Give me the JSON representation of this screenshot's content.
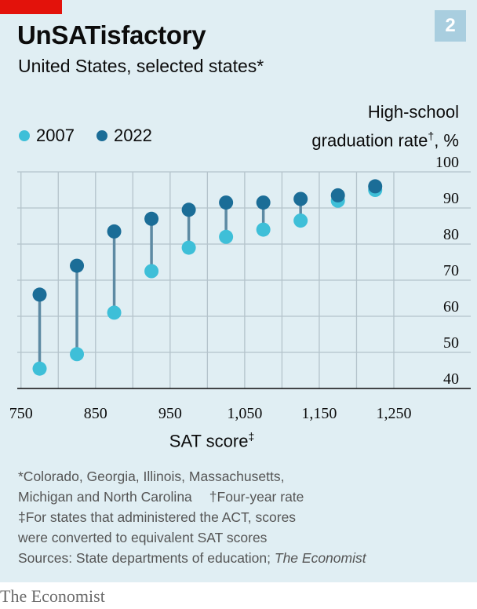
{
  "header": {
    "title": "UnSATisfactory",
    "subtitle": "United States, selected states*",
    "chart_number": "2"
  },
  "colors": {
    "accent_red": "#e3120b",
    "series_2007": "#3ebfd8",
    "series_2022": "#1b6d97",
    "connector": "#5d8aa3",
    "background": "#e0eef3",
    "gridline": "#b4c3cb"
  },
  "legend": {
    "label_2007": "2007",
    "label_2022": "2022"
  },
  "axes": {
    "y_title_line1": "High-school",
    "y_title_line2": "graduation rate",
    "y_title_mark": "†",
    "y_title_unit": ", %",
    "x_title": "SAT score",
    "x_title_mark": "‡"
  },
  "notes": {
    "line1": "*Colorado, Georgia, Illinois, Massachusetts,",
    "line2a": "Michigan and North Carolina",
    "line2b": "†Four-year rate",
    "line3": "‡For states that administered the ACT, scores",
    "line4": "were converted to equivalent SAT scores",
    "line5_prefix": "Sources: State departments of education; ",
    "line5_italic": "The Economist"
  },
  "brand": "The Economist",
  "chart_data": {
    "type": "scatter",
    "title": "UnSATisfactory",
    "subtitle": "United States, selected states*",
    "xlabel": "SAT score‡",
    "ylabel": "High-school graduation rate†, %",
    "xlim": [
      745,
      1290
    ],
    "ylim": [
      40,
      100
    ],
    "x_ticks": [
      750,
      850,
      950,
      1050,
      1150,
      1250
    ],
    "x_tick_labels": [
      "750",
      "850",
      "950",
      "1,050",
      "1,150",
      "1,250"
    ],
    "y_ticks": [
      40,
      50,
      60,
      70,
      80,
      90,
      100
    ],
    "grid": true,
    "legend_position": "top-left",
    "x": [
      775,
      825,
      875,
      925,
      975,
      1025,
      1075,
      1125,
      1175,
      1225
    ],
    "series": [
      {
        "name": "2007",
        "values": [
          45.5,
          49.5,
          61,
          72.5,
          79,
          82,
          84,
          86.5,
          92,
          95
        ]
      },
      {
        "name": "2022",
        "values": [
          66,
          74,
          83.5,
          87,
          89.5,
          91.5,
          91.5,
          92.5,
          93.5,
          96
        ]
      }
    ]
  }
}
